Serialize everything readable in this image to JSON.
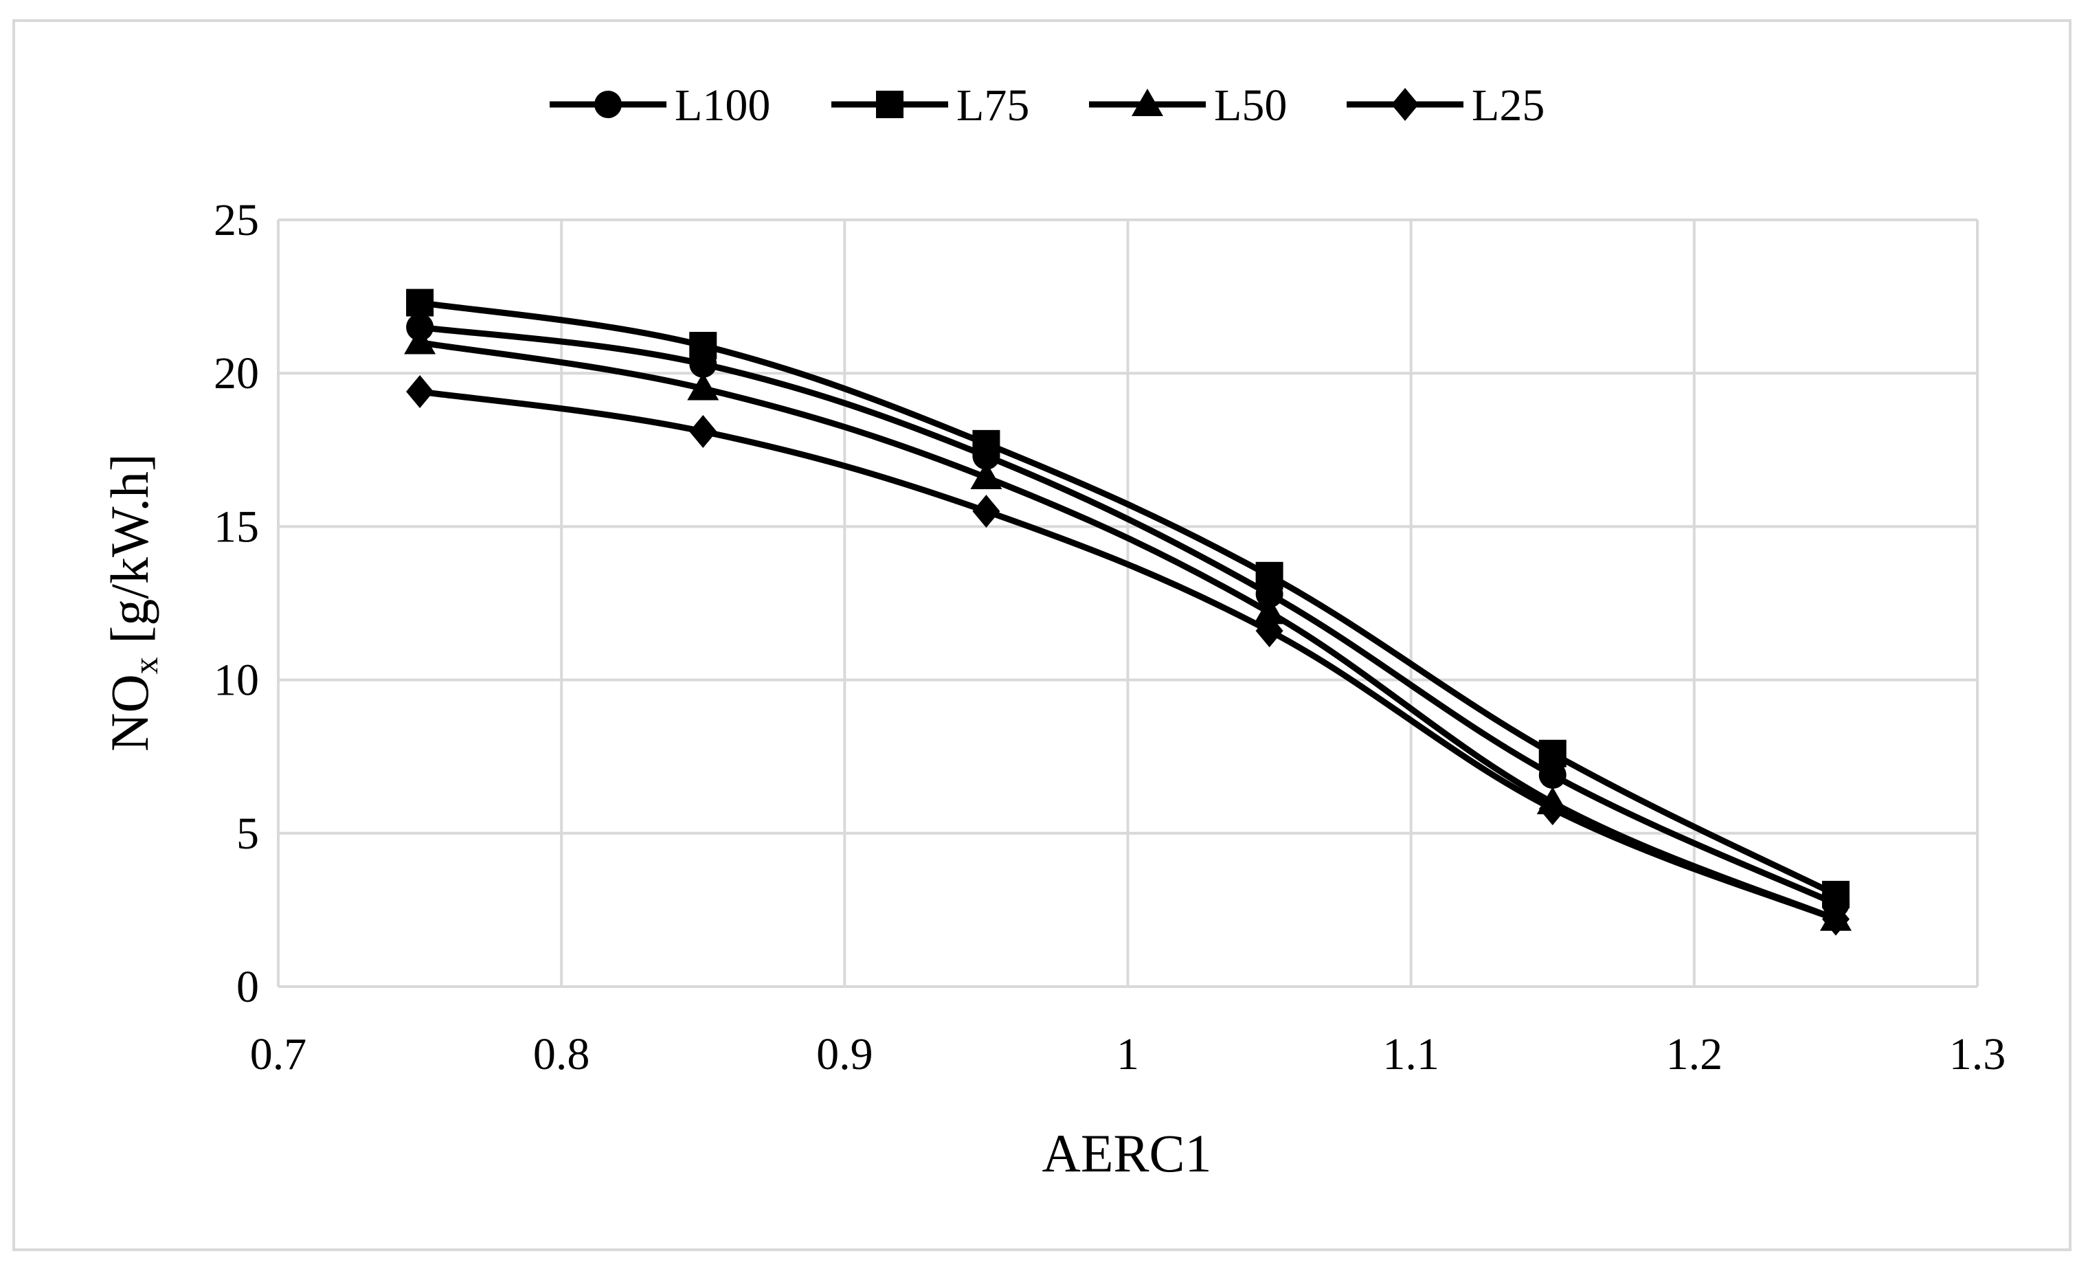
{
  "chart_data": {
    "type": "line",
    "title": "",
    "xlabel": "AERC1",
    "ylabel_main": "NO",
    "ylabel_sub": "x",
    "ylabel_rest": " [g/kW.h]",
    "xlim": [
      0.7,
      1.3
    ],
    "ylim": [
      0,
      25
    ],
    "x_ticks": [
      0.7,
      0.8,
      0.9,
      1,
      1.1,
      1.2,
      1.3
    ],
    "x_tick_labels": [
      "0.7",
      "0.8",
      "0.9",
      "1",
      "1.1",
      "1.2",
      "1.3"
    ],
    "y_ticks": [
      0,
      5,
      10,
      15,
      20,
      25
    ],
    "y_tick_labels": [
      "0",
      "5",
      "10",
      "15",
      "20",
      "25"
    ],
    "grid": true,
    "legend_position": "top-center",
    "x": [
      0.75,
      0.85,
      0.95,
      1.05,
      1.15,
      1.25
    ],
    "series": [
      {
        "name": "L100",
        "marker": "circle",
        "color": "#000000",
        "values": [
          21.5,
          20.3,
          17.3,
          12.8,
          6.9,
          2.7
        ]
      },
      {
        "name": "L75",
        "marker": "square",
        "color": "#000000",
        "values": [
          22.3,
          20.9,
          17.7,
          13.4,
          7.6,
          3.0
        ]
      },
      {
        "name": "L50",
        "marker": "triangle",
        "color": "#000000",
        "values": [
          21.0,
          19.5,
          16.6,
          12.2,
          6.0,
          2.2
        ]
      },
      {
        "name": "L25",
        "marker": "diamond",
        "color": "#000000",
        "values": [
          19.4,
          18.1,
          15.5,
          11.6,
          5.8,
          2.2
        ]
      }
    ],
    "colors": {
      "grid": "#d9d9d9",
      "axis": "#d9d9d9",
      "line": "#000000",
      "frame": "#d9d9d9"
    }
  }
}
